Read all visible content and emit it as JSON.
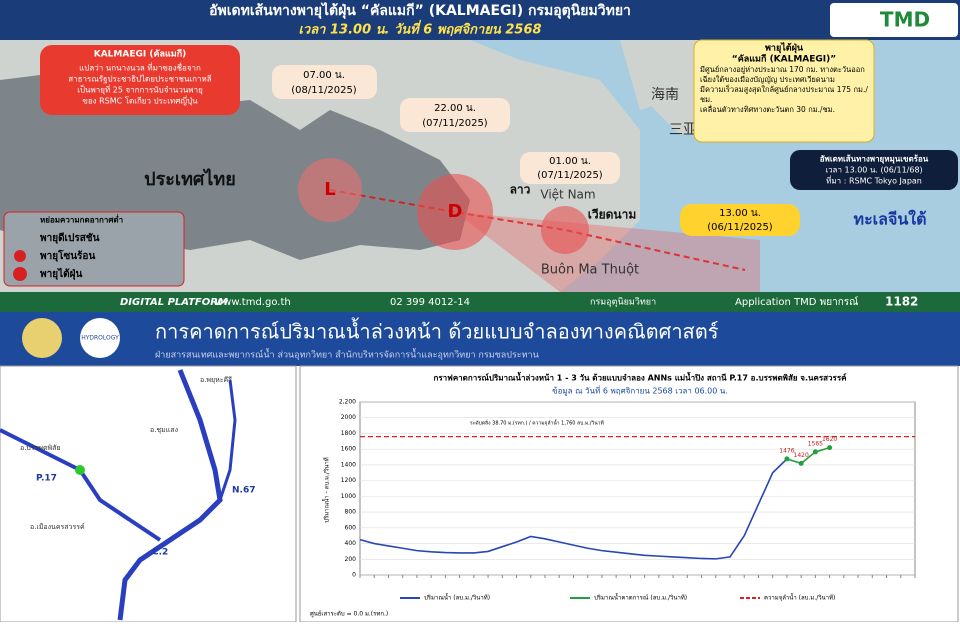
{
  "header": {
    "title": "อัพเดทเส้นทางพายุไต้ฝุ่น “คัลแมกี” (KALMAEGI)  กรมอุตุนิยมวิทยา",
    "subtitle": "เวลา 13.00 น. วันที่ 6 พฤศจิกายน 2568",
    "logo": "TMD"
  },
  "name_box": {
    "title": "KALMAEGI (คัลแมกี)",
    "lines": [
      "แปลว่า นกนางนวล ที่มาของชื่อจาก",
      "สาธารณรัฐประชาธิปไตยประชาชนเกาหลี",
      "เป็นพายุที่ 25 จากการนับจำนวนพายุ",
      "ของ RSMC โตเกียว ประเทศญี่ปุ่น"
    ]
  },
  "track": [
    {
      "time": "07.00 น.",
      "date": "(08/11/2025)"
    },
    {
      "time": "22.00 น.",
      "date": "(07/11/2025)"
    },
    {
      "time": "01.00 น.",
      "date": "(07/11/2025)"
    },
    {
      "time": "13.00 น.",
      "date": "(06/11/2025)"
    }
  ],
  "places": [
    "ประเทศไทย",
    "ลาว",
    "เวียดนาม",
    "ทะเลจีนใต้",
    "Buôn Ma Thuột",
    "海南",
    "三亚市",
    "Việt Nam"
  ],
  "legend": {
    "title": "หย่อมความกดอากาศต่ำ",
    "items": [
      "พายุดีเปรสชัน",
      "พายุโซนร้อน",
      "พายุไต้ฝุ่น"
    ],
    "symbols": [
      "L",
      "D"
    ]
  },
  "info_box": {
    "title": "พายุไต้ฝุ่น",
    "name": "“คัลแมกี (KALMAEGI)”",
    "bullets": [
      "มีศูนย์กลางอยู่ห่างประมาณ 170 กม. ทางตะวันออกเฉียงใต้ของเมืองบัญญัญ ประเทศเวียดนาม",
      "มีความเร็วลมสูงสุดใกล้ศูนย์กลางประมาณ 175 กม./ชม.",
      "เคลื่อนตัวทางทิศทางตะวันตก 30 กม./ชม."
    ]
  },
  "source_box": {
    "title": "อัพเดทเส้นทางพายุหมุนเขตร้อน",
    "time": "เวลา 13.00 น. (06/11/68)",
    "source": "ที่มา : RSMC Tokyo Japan"
  },
  "footer": {
    "platform": "DIGITAL PLATFORM",
    "web": "www.tmd.go.th",
    "phone": "02 399 4012-14",
    "dept": "กรมอุตุนิยมวิทยา",
    "app": "Application TMD พยากรณ์",
    "hotline": "1182"
  },
  "flow_header": {
    "title": "การคาดการณ์ปริมาณน้ำล่วงหน้า ด้วยแบบจำลองทางคณิตศาสตร์",
    "subtitle": "ฝ่ายสารสนเทศและพยากรณ์น้ำ ส่วนอุทกวิทยา สำนักบริหารจัดการน้ำและอุทกวิทยา กรมชลประทาน",
    "logo": "HYDROLOGY"
  },
  "river_map": {
    "stations": [
      "P.17",
      "N.67",
      "C.2"
    ],
    "labels": [
      "อ.บรรพตพิสัย",
      "อ.ชุมแสง",
      "อ.เมืองนครสวรรค์",
      "อ.พยุหะคีรี"
    ]
  },
  "chart_data": {
    "type": "line",
    "title": "กราฟคาดการณ์ปริมาณน้ำล่วงหน้า 1 - 3 วัน  ด้วยแบบจำลอง ANNs แม่น้ำปิง สถานี P.17 อ.บรรพตพิสัย จ.นครสวรรค์",
    "subtitle": "ข้อมูล ณ วันที่   6 พฤศจิกายน 2568   เวลา 06.00 น.",
    "ylabel": "ปริมาณน้ำ - ลบ.ม./วินาที",
    "note": "ระดับตลิ่ง 38.70 ม.(รทก.) / ความจุลำน้ำ 1,760 ลบ.ม./วินาที",
    "zero_note": "ศูนย์เสาระดับ = 0.0 ม.(รทก.)",
    "threshold": {
      "name": "ความจุลำน้ำ (ลบ.ม./วินาที)",
      "value": 1760,
      "color": "#e02020"
    },
    "categories": [
      null,
      null,
      null,
      null,
      null,
      null,
      null,
      null,
      null,
      null,
      null,
      null,
      null,
      null,
      null,
      null,
      null,
      null,
      null,
      null,
      null,
      null,
      null,
      null,
      null,
      null,
      null,
      null,
      null,
      null,
      null,
      null,
      null,
      null,
      null,
      null,
      null,
      null,
      null,
      null
    ],
    "series": [
      {
        "name": "ปริมาณน้ำ (ลบ.ม./วินาที)",
        "color": "#2846b4",
        "values": [
          450,
          400,
          370,
          340,
          310,
          295,
          285,
          280,
          280,
          300,
          360,
          420,
          490,
          460,
          420,
          380,
          340,
          310,
          290,
          270,
          250,
          240,
          230,
          220,
          210,
          205,
          230,
          500,
          900,
          1300,
          1476,
          null,
          null,
          null,
          null,
          null,
          null,
          null,
          null,
          null
        ]
      },
      {
        "name": "ปริมาณน้ำคาดการณ์ (ลบ.ม./วินาที)",
        "color": "#22a040",
        "values": [
          null,
          null,
          null,
          null,
          null,
          null,
          null,
          null,
          null,
          null,
          null,
          null,
          null,
          null,
          null,
          null,
          null,
          null,
          null,
          null,
          null,
          null,
          null,
          null,
          null,
          null,
          null,
          null,
          null,
          null,
          1476,
          1420,
          1565,
          1620,
          null,
          null,
          null,
          null,
          null,
          null
        ]
      }
    ],
    "ylim": [
      0,
      2200
    ],
    "yticks": [
      0,
      200,
      400,
      600,
      800,
      1000,
      1200,
      1400,
      1600,
      1800,
      2000,
      {
        "value": 2200,
        "label": "2,200"
      }
    ],
    "grid": true
  }
}
